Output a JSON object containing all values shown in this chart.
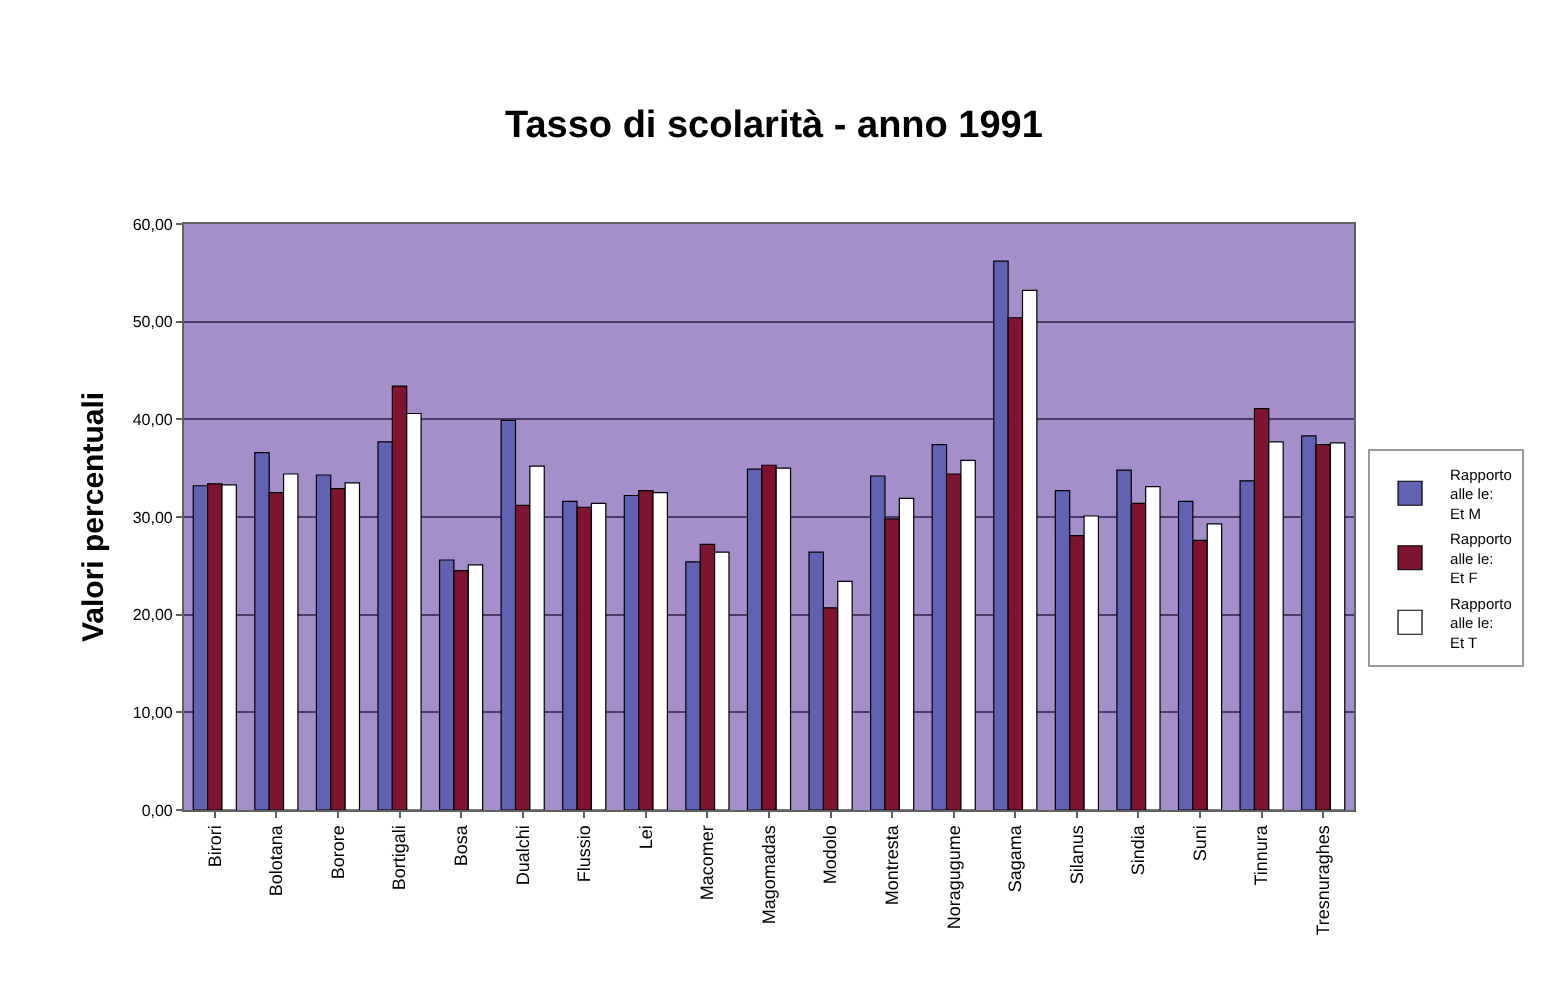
{
  "chart_data": {
    "type": "bar",
    "title": "Tasso di scolarità - anno 1991",
    "ylabel": "Valori percentuali",
    "categories": [
      "Birori",
      "Bolotana",
      "Borore",
      "Bortigali",
      "Bosa",
      "Dualchi",
      "Flussio",
      "Lei",
      "Macomer",
      "Magomadas",
      "Modolo",
      "Montresta",
      "Noragugume",
      "Sagama",
      "Silanus",
      "Sindia",
      "Suni",
      "Tinnura",
      "Tresnuraghes"
    ],
    "series": [
      {
        "name": "Rapporto alle le: Et M",
        "color": "#6262b4",
        "values": [
          33.2,
          36.6,
          34.3,
          37.7,
          25.6,
          39.9,
          31.6,
          32.2,
          25.4,
          34.9,
          26.4,
          34.2,
          37.4,
          56.2,
          32.7,
          34.8,
          31.6,
          33.7,
          38.3
        ]
      },
      {
        "name": "Rapporto alle le: Et F",
        "color": "#7e1430",
        "values": [
          33.4,
          32.5,
          32.9,
          43.4,
          24.5,
          31.2,
          31.0,
          32.7,
          27.2,
          35.3,
          20.7,
          29.8,
          34.4,
          50.4,
          28.1,
          31.4,
          27.6,
          41.1,
          37.4
        ]
      },
      {
        "name": "Rapporto alle le: Et T",
        "color": "#ffffff",
        "values": [
          33.3,
          34.4,
          33.5,
          40.6,
          25.1,
          35.2,
          31.4,
          32.5,
          26.4,
          35.0,
          23.4,
          31.9,
          35.8,
          53.2,
          30.1,
          33.1,
          29.3,
          37.7,
          37.6
        ]
      }
    ],
    "ylim": [
      0,
      60
    ],
    "yticks": [
      {
        "value": 0,
        "label": "0,00"
      },
      {
        "value": 10,
        "label": "10,00"
      },
      {
        "value": 20,
        "label": "20,00"
      },
      {
        "value": 30,
        "label": "30,00"
      },
      {
        "value": 40,
        "label": "40,00"
      },
      {
        "value": 50,
        "label": "50,00"
      },
      {
        "value": 60,
        "label": "60,00"
      }
    ],
    "grid": "y",
    "legend": "right"
  }
}
